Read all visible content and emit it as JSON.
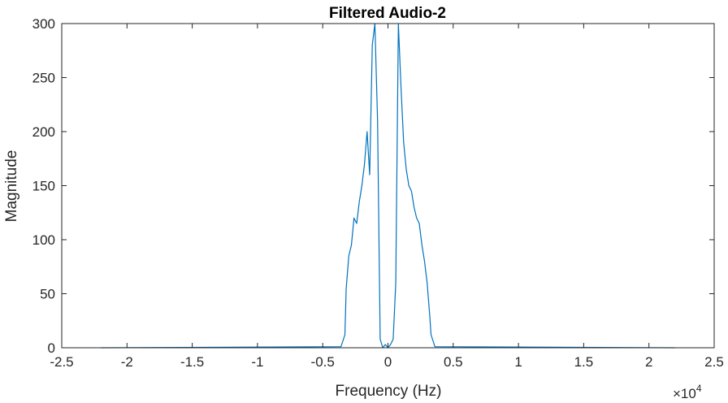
{
  "chart_data": {
    "type": "line",
    "title": "Filtered Audio-2",
    "xlabel": "Frequency (Hz)",
    "ylabel": "Magnitude",
    "x_multiplier_base": "×10",
    "x_multiplier_exponent": "4",
    "xlim": [
      -25000,
      25000
    ],
    "ylim": [
      0,
      300
    ],
    "x_ticks": [
      -25000,
      -20000,
      -15000,
      -10000,
      -5000,
      0,
      5000,
      10000,
      15000,
      20000,
      25000
    ],
    "x_tick_labels": [
      "-2.5",
      "-2",
      "-1.5",
      "-1",
      "-0.5",
      "0",
      "0.5",
      "1",
      "1.5",
      "2",
      "2.5"
    ],
    "y_ticks": [
      0,
      50,
      100,
      150,
      200,
      250,
      300
    ],
    "y_tick_labels": [
      "0",
      "50",
      "100",
      "150",
      "200",
      "250",
      "300"
    ],
    "grid": false,
    "line_color": "#0072bd",
    "series": [
      {
        "x": [
          -22000,
          -3600,
          -3300,
          -3200,
          -3000,
          -2800,
          -2600,
          -2400,
          -2200,
          -2000,
          -1800,
          -1600,
          -1400,
          -1200,
          -1000,
          -800,
          -600,
          -400,
          -200,
          0,
          200,
          400,
          600,
          800,
          1000,
          1200,
          1400,
          1600,
          1800,
          2000,
          2200,
          2400,
          2600,
          2800,
          3000,
          3200,
          3300,
          3600,
          22000
        ],
        "y": [
          0,
          1,
          12,
          55,
          85,
          95,
          120,
          115,
          135,
          150,
          170,
          200,
          160,
          280,
          300,
          210,
          8,
          0,
          3,
          0,
          3,
          8,
          60,
          300,
          240,
          190,
          165,
          150,
          145,
          130,
          120,
          115,
          95,
          80,
          60,
          30,
          12,
          1,
          0
        ]
      }
    ]
  }
}
